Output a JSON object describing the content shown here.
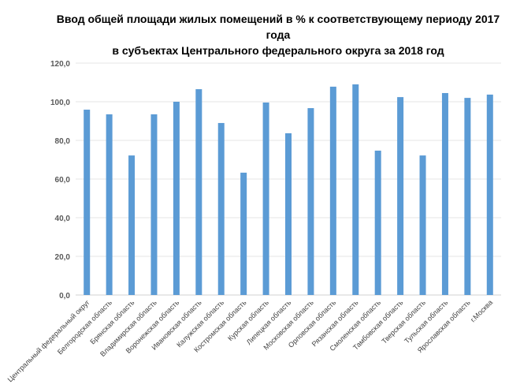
{
  "chart_data": {
    "type": "bar",
    "title_line1": "Ввод общей площади жилых помещений в % к соответствующему периоду 2017 года",
    "title_line2": "в субъектах Центрального федерального округа за 2018 год",
    "xlabel": "",
    "ylabel": "",
    "ylim": [
      0,
      120
    ],
    "yticks": [
      "0,0",
      "20,0",
      "40,0",
      "60,0",
      "80,0",
      "100,0",
      "120,0"
    ],
    "grid": true,
    "bar_color": "#5B9BD5",
    "categories": [
      "Центральный федеральный округ",
      "Белгородская область",
      "Брянская область",
      "Владимирская область",
      "Воронежская область",
      "Ивановская область",
      "Калужская область",
      "Костромская область",
      "Курская область",
      "Липецкая область",
      "Московская область",
      "Орловская область",
      "Рязанская область",
      "Смоленская область",
      "Тамбовская область",
      "Тверская область",
      "Тульская область",
      "Ярославская область",
      "г.Москва"
    ],
    "values": [
      95.9,
      93.5,
      72.2,
      93.5,
      100.0,
      106.5,
      89.0,
      63.3,
      99.6,
      83.7,
      96.7,
      107.8,
      109.0,
      74.7,
      102.4,
      72.2,
      104.5,
      102.0,
      103.7
    ]
  }
}
